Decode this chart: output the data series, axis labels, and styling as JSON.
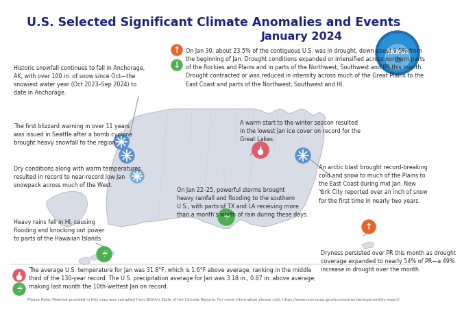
{
  "title_line1": "U.S. Selected Significant Climate Anomalies and Events",
  "title_line2": "January 2024",
  "bg_color": "#ffffff",
  "title_color": "#1a237e",
  "map_color": "#d8dce6",
  "map_border_color": "#b8bcc8",
  "state_line_color": "#c8ccd8",
  "annotation_color": "#2a2a2a",
  "footer_note": "Please Note: Material provided in this map was compiled from NOAA's State of the Climate Reports. For more information please visit: https://www.ncei.noaa.gov/access/monitoring/monthly-report/",
  "bottom_left_text": "The average U.S. temperature for Jan was 31.8°F, which is 1.6°F above average, ranking in the middle\nthird of the 130-year record. The U.S. precipitation average for Jan was 3.18 in., 0.87 in. above average,\nmaking last month the 10th-wettest Jan on record.",
  "bottom_right_text": "Dryness persisted over PR this month as drought\ncoverage expanded to nearly 54% of PR—a 49%\nincrease in drought over the month.",
  "icon_snow_color": "#5b8fc9",
  "icon_snow_light_color": "#7aafd4",
  "icon_temp_color": "#e05a6a",
  "icon_rain_color": "#4caf50",
  "icon_drought_expand_color": "#e8622a",
  "icon_drought_contract_color": "#4caf50",
  "noaa_bg": "#2a7ab8",
  "divider_color": "#cccccc"
}
